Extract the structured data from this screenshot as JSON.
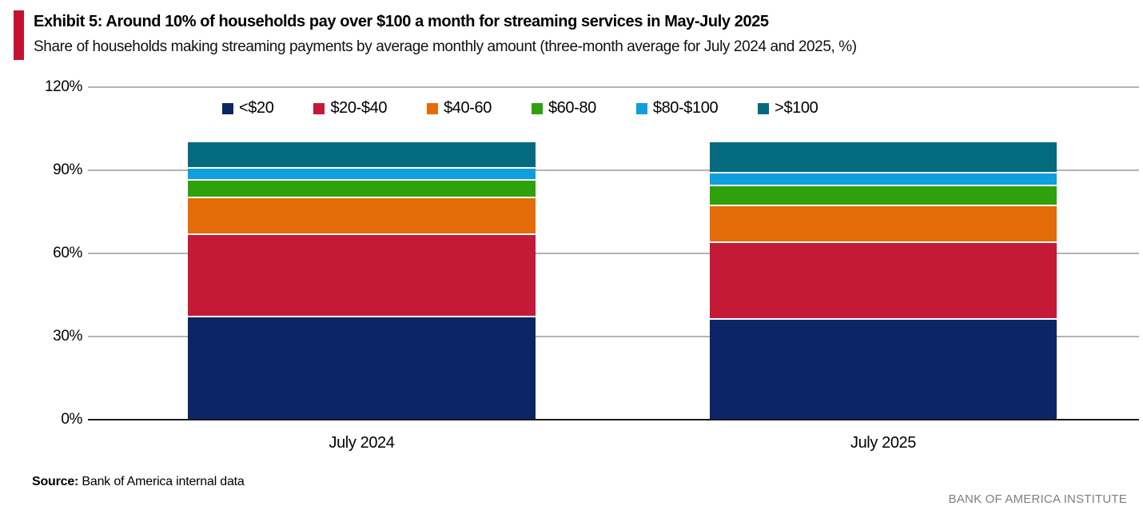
{
  "header": {
    "exhibit_title": "Exhibit 5: Around 10% of households pay over $100 a month for streaming services in May-July 2025",
    "subtitle": "Share of households making streaming payments by average monthly amount (three-month average for July 2024 and 2025, %)",
    "accent_color": "#c41230"
  },
  "chart_data": {
    "type": "bar",
    "stacked": true,
    "orientation": "vertical",
    "categories": [
      "July 2024",
      "July 2025"
    ],
    "series": [
      {
        "name": "<$20",
        "color": "#0c2566",
        "values": [
          38,
          37
        ]
      },
      {
        "name": "$20-$40",
        "color": "#c41a38",
        "values": [
          30,
          28
        ]
      },
      {
        "name": "$40-60",
        "color": "#e36c09",
        "values": [
          13,
          13
        ]
      },
      {
        "name": "$60-80",
        "color": "#2fa10b",
        "values": [
          6,
          7
        ]
      },
      {
        "name": "$80-$100",
        "color": "#0f9fdc",
        "values": [
          4,
          4
        ]
      },
      {
        "name": ">$100",
        "color": "#046a80",
        "values": [
          9,
          11
        ]
      }
    ],
    "y_ticks": [
      "0%",
      "30%",
      "60%",
      "90%",
      "120%"
    ],
    "ylim": [
      0,
      120
    ],
    "grid": true,
    "gridline_color": "#b3b3b3",
    "baseline_color": "#1a1a1a",
    "legend_position": "top",
    "title": "",
    "xlabel": "",
    "ylabel": ""
  },
  "footer": {
    "source_label": "Source:",
    "source_text": "Bank of America internal data",
    "institute": "BANK OF AMERICA INSTITUTE"
  }
}
